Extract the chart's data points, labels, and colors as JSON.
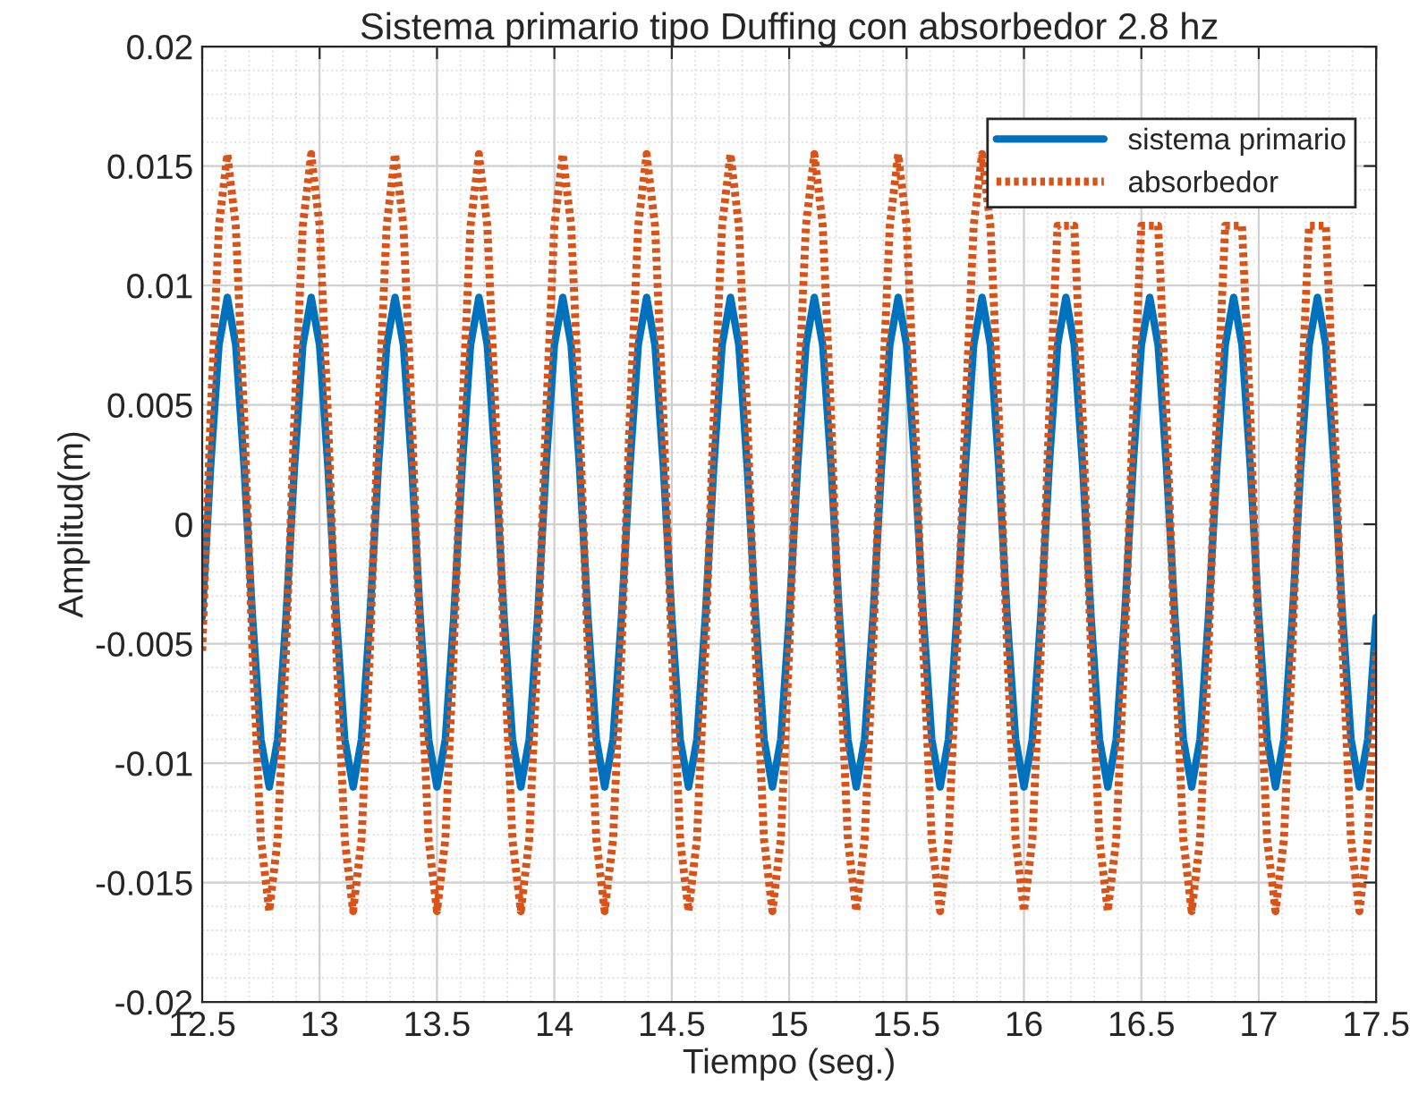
{
  "chart_data": {
    "type": "line",
    "title": "Sistema primario tipo Duffing con absorbedor 2.8 hz",
    "xlabel": "Tiempo (seg.)",
    "ylabel": "Amplitud(m)",
    "x": [
      12.5,
      12.5357,
      12.5714,
      12.6071,
      12.6429,
      12.6786,
      12.7143,
      12.75,
      12.7857,
      12.8214,
      12.8571,
      12.8929,
      12.9286,
      12.9643,
      13.0,
      13.0357,
      13.0714,
      13.1071,
      13.1429,
      13.1786,
      13.2143,
      13.25,
      13.2857,
      13.3214,
      13.3571,
      13.3929,
      13.4286,
      13.4643,
      13.5,
      13.5357,
      13.5714,
      13.6071,
      13.6429,
      13.6786,
      13.7143,
      13.75,
      13.7857,
      13.8214,
      13.8571,
      13.8929,
      13.9286,
      13.9643,
      14.0,
      14.0357,
      14.0714,
      14.1071,
      14.1429,
      14.1786,
      14.2143,
      14.25,
      14.2857,
      14.3214,
      14.3571,
      14.3929,
      14.4286,
      14.4643,
      14.5,
      14.5357,
      14.5714,
      14.6071,
      14.6429,
      14.6786,
      14.7143,
      14.75,
      14.7857,
      14.8214,
      14.8571,
      14.8929,
      14.9286,
      14.9643,
      15.0,
      15.0357,
      15.0714,
      15.1071,
      15.1429,
      15.1786,
      15.2143,
      15.25,
      15.2857,
      15.3214,
      15.3571,
      15.3929,
      15.4286,
      15.4643,
      15.5,
      15.5357,
      15.5714,
      15.6071,
      15.6429,
      15.6786,
      15.7143,
      15.75,
      15.7857,
      15.8214,
      15.8571,
      15.8929,
      15.9286,
      15.9643,
      16.0,
      16.0357,
      16.0714,
      16.1071,
      16.1429,
      16.1786,
      16.2143,
      16.25,
      16.2857,
      16.3214,
      16.3571,
      16.3929,
      16.4286,
      16.4643,
      16.5,
      16.5357,
      16.5714,
      16.6071,
      16.6429,
      16.6786,
      16.7143,
      16.75,
      16.7857,
      16.8214,
      16.8571,
      16.8929,
      16.9286,
      16.9643,
      17.0,
      17.0357,
      17.0714,
      17.1071,
      17.1429,
      17.1786,
      17.2143,
      17.25,
      17.2857,
      17.3214,
      17.3571,
      17.3929,
      17.4286,
      17.4643,
      17.5
    ],
    "series": [
      {
        "name": "sistema primario",
        "color": "#0072bd",
        "line_style": "solid",
        "values": [
          -0.0039,
          0.0024,
          0.0075,
          0.0095,
          0.0075,
          0.0024,
          -0.0039,
          -0.009,
          -0.011,
          -0.009,
          -0.0039,
          0.0024,
          0.0075,
          0.0095,
          0.0075,
          0.0024,
          -0.0039,
          -0.009,
          -0.011,
          -0.009,
          -0.0039,
          0.0024,
          0.0075,
          0.0095,
          0.0075,
          0.0024,
          -0.0039,
          -0.009,
          -0.011,
          -0.009,
          -0.0039,
          0.0024,
          0.0075,
          0.0095,
          0.0075,
          0.0024,
          -0.0039,
          -0.009,
          -0.011,
          -0.009,
          -0.0039,
          0.0024,
          0.0075,
          0.0095,
          0.0075,
          0.0024,
          -0.0039,
          -0.009,
          -0.011,
          -0.009,
          -0.0039,
          0.0024,
          0.0075,
          0.0095,
          0.0075,
          0.0024,
          -0.0039,
          -0.009,
          -0.011,
          -0.009,
          -0.0039,
          0.0024,
          0.0075,
          0.0095,
          0.0075,
          0.0024,
          -0.0039,
          -0.009,
          -0.011,
          -0.009,
          -0.0039,
          0.0024,
          0.0075,
          0.0095,
          0.0075,
          0.0024,
          -0.0039,
          -0.009,
          -0.011,
          -0.009,
          -0.0039,
          0.0024,
          0.0075,
          0.0095,
          0.0075,
          0.0024,
          -0.0039,
          -0.009,
          -0.011,
          -0.009,
          -0.0039,
          0.0024,
          0.0075,
          0.0095,
          0.0075,
          0.0024,
          -0.0039,
          -0.009,
          -0.011,
          -0.009,
          -0.0039,
          0.0024,
          0.0075,
          0.0095,
          0.0075,
          0.0024,
          -0.0039,
          -0.009,
          -0.011,
          -0.009,
          -0.0039,
          0.0024,
          0.0075,
          0.0095,
          0.0075,
          0.0024,
          -0.0039,
          -0.009,
          -0.011,
          -0.009,
          -0.0039,
          0.0024,
          0.0075,
          0.0095,
          0.0075,
          0.0024,
          -0.0039,
          -0.009,
          -0.011,
          -0.009,
          -0.0039,
          0.0024,
          0.0075,
          0.0095,
          0.0075,
          0.0024,
          -0.0039,
          -0.009,
          -0.011,
          -0.009,
          -0.0039
        ]
      },
      {
        "name": "absorbedor",
        "color": "#d95319",
        "line_style": "dotted",
        "values": [
          -0.0053,
          0.0045,
          0.0125,
          0.0155,
          0.0125,
          0.0045,
          -0.0053,
          -0.0132,
          -0.0162,
          -0.0132,
          -0.0053,
          0.0045,
          0.0125,
          0.0155,
          0.0125,
          0.0045,
          -0.0053,
          -0.0132,
          -0.0162,
          -0.0132,
          -0.0053,
          0.0045,
          0.0125,
          0.0155,
          0.0125,
          0.0045,
          -0.0053,
          -0.0132,
          -0.0162,
          -0.0132,
          -0.0053,
          0.0045,
          0.0125,
          0.0155,
          0.0125,
          0.0045,
          -0.0053,
          -0.0132,
          -0.0162,
          -0.0132,
          -0.0053,
          0.0045,
          0.0125,
          0.0155,
          0.0125,
          0.0045,
          -0.0053,
          -0.0132,
          -0.0162,
          -0.0132,
          -0.0053,
          0.0045,
          0.0125,
          0.0155,
          0.0125,
          0.0045,
          -0.0053,
          -0.0132,
          -0.0162,
          -0.0132,
          -0.0053,
          0.0045,
          0.0125,
          0.0155,
          0.0125,
          0.0045,
          -0.0053,
          -0.0132,
          -0.0162,
          -0.0132,
          -0.0053,
          0.0045,
          0.0125,
          0.0155,
          0.0125,
          0.0045,
          -0.0053,
          -0.0132,
          -0.0162,
          -0.0132,
          -0.0053,
          0.0045,
          0.0125,
          0.0155,
          0.0125,
          0.0045,
          -0.0053,
          -0.0132,
          -0.0162,
          -0.0132,
          -0.0053,
          0.0045,
          0.0125,
          0.0155,
          0.0125,
          0.0045,
          -0.0053,
          -0.0132,
          -0.0162,
          -0.0132,
          -0.0053,
          0.0045,
          0.0125,
          null,
          0.0125,
          0.0045,
          -0.0053,
          -0.0132,
          -0.0162,
          -0.0132,
          -0.0053,
          0.0045,
          0.0125,
          null,
          0.0125,
          0.0045,
          -0.0053,
          -0.0132,
          -0.0162,
          -0.0132,
          -0.0053,
          0.0045,
          0.0125,
          null,
          0.0125,
          0.0045,
          -0.0053,
          -0.0132,
          -0.0162,
          -0.0132,
          -0.0053,
          0.0045,
          0.0125,
          null,
          0.0125,
          0.0045,
          -0.0053,
          -0.0132,
          -0.0162,
          -0.0132,
          -0.0053
        ]
      }
    ],
    "xlim": [
      12.5,
      17.5
    ],
    "xticks": [
      12.5,
      13,
      13.5,
      14,
      14.5,
      15,
      15.5,
      16,
      16.5,
      17,
      17.5
    ],
    "ylim": [
      -0.02,
      0.02
    ],
    "yticks": [
      -0.02,
      -0.015,
      -0.01,
      -0.005,
      0,
      0.005,
      0.01,
      0.015,
      0.02
    ],
    "grid": true,
    "legend": "top right",
    "marker": "none"
  }
}
